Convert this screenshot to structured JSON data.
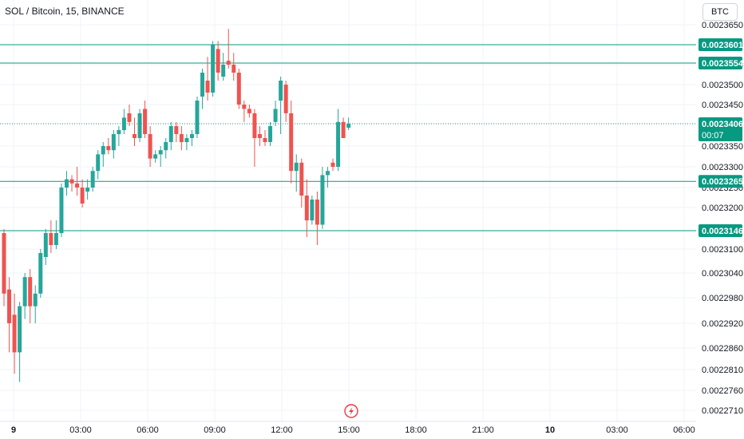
{
  "header": {
    "title": "SOL / Bitcoin, 15, BINANCE",
    "currency_button": "BTC"
  },
  "colors": {
    "up": "#26a69a",
    "down": "#ef5350",
    "level_line": "#089981",
    "label_bg": "#089981",
    "grid": "#f0f3fa",
    "axis_text": "#131722",
    "lightning": "#f23645"
  },
  "chart_data": {
    "type": "candlestick",
    "title": "SOL / Bitcoin, 15, BINANCE",
    "price_axis": {
      "ticks": [
        0.002365,
        0.002355,
        0.00235,
        0.002345,
        0.002335,
        0.00233,
        0.002325,
        0.00232,
        0.00231,
        0.002304,
        0.002298,
        0.002292,
        0.002286,
        0.002281,
        0.002276,
        0.002271
      ],
      "tick_labels": [
        "0.0023650",
        "0.0023550",
        "0.0023500",
        "0.0023450",
        "0.0023350",
        "0.0023300",
        "0.0023250",
        "0.0023200",
        "0.0023100",
        "0.0023040",
        "0.0022980",
        "0.0022920",
        "0.0022860",
        "0.0022810",
        "0.0022760",
        "0.0022710"
      ]
    },
    "time_axis": {
      "labels": [
        "9",
        "03:00",
        "06:00",
        "09:00",
        "12:00",
        "15:00",
        "18:00",
        "21:00",
        "10",
        "03:00",
        "06:00"
      ],
      "bold": [
        true,
        false,
        false,
        false,
        false,
        false,
        false,
        false,
        true,
        false,
        false
      ]
    },
    "levels": [
      {
        "price": 0.0023601,
        "label": "0.0023601"
      },
      {
        "price": 0.0023554,
        "label": "0.0023554"
      },
      {
        "price": 0.0023265,
        "label": "0.0023265"
      },
      {
        "price": 0.0023146,
        "label": "0.0023146"
      }
    ],
    "last_price": {
      "price": 0.0023406,
      "label": "0.0023406",
      "countdown": "00:07"
    },
    "candles": [
      {
        "o": 0.002314,
        "h": 0.002315,
        "l": 0.002296,
        "c": 0.002299
      },
      {
        "o": 0.0023,
        "h": 0.002303,
        "l": 0.002285,
        "c": 0.002292
      },
      {
        "o": 0.002294,
        "h": 0.002299,
        "l": 0.00228,
        "c": 0.002285
      },
      {
        "o": 0.002285,
        "h": 0.002297,
        "l": 0.002278,
        "c": 0.002296
      },
      {
        "o": 0.002296,
        "h": 0.002304,
        "l": 0.002293,
        "c": 0.002303
      },
      {
        "o": 0.002303,
        "h": 0.002305,
        "l": 0.002292,
        "c": 0.002296
      },
      {
        "o": 0.002296,
        "h": 0.002301,
        "l": 0.002292,
        "c": 0.002299
      },
      {
        "o": 0.002299,
        "h": 0.00231,
        "l": 0.002298,
        "c": 0.002309
      },
      {
        "o": 0.002308,
        "h": 0.002315,
        "l": 0.002306,
        "c": 0.002314
      },
      {
        "o": 0.002314,
        "h": 0.002317,
        "l": 0.002309,
        "c": 0.002311
      },
      {
        "o": 0.002311,
        "h": 0.002317,
        "l": 0.00231,
        "c": 0.002314
      },
      {
        "o": 0.002314,
        "h": 0.002326,
        "l": 0.002313,
        "c": 0.002325
      },
      {
        "o": 0.002325,
        "h": 0.002329,
        "l": 0.002323,
        "c": 0.002327
      },
      {
        "o": 0.002327,
        "h": 0.002328,
        "l": 0.002324,
        "c": 0.002326
      },
      {
        "o": 0.002326,
        "h": 0.00233,
        "l": 0.002323,
        "c": 0.002325
      },
      {
        "o": 0.002325,
        "h": 0.002327,
        "l": 0.00232,
        "c": 0.002321
      },
      {
        "o": 0.002324,
        "h": 0.002327,
        "l": 0.002322,
        "c": 0.002325
      },
      {
        "o": 0.002325,
        "h": 0.00233,
        "l": 0.002324,
        "c": 0.002329
      },
      {
        "o": 0.002329,
        "h": 0.002334,
        "l": 0.002327,
        "c": 0.002333
      },
      {
        "o": 0.002333,
        "h": 0.002336,
        "l": 0.00233,
        "c": 0.002335
      },
      {
        "o": 0.002335,
        "h": 0.002337,
        "l": 0.002333,
        "c": 0.002334
      },
      {
        "o": 0.002334,
        "h": 0.002339,
        "l": 0.002332,
        "c": 0.002338
      },
      {
        "o": 0.002338,
        "h": 0.00234,
        "l": 0.002335,
        "c": 0.002339
      },
      {
        "o": 0.002339,
        "h": 0.002344,
        "l": 0.002338,
        "c": 0.002342
      },
      {
        "o": 0.002343,
        "h": 0.002345,
        "l": 0.00234,
        "c": 0.002341
      },
      {
        "o": 0.002338,
        "h": 0.002342,
        "l": 0.002335,
        "c": 0.002337
      },
      {
        "o": 0.002337,
        "h": 0.002344,
        "l": 0.002336,
        "c": 0.002343
      },
      {
        "o": 0.002344,
        "h": 0.002346,
        "l": 0.002337,
        "c": 0.002338
      },
      {
        "o": 0.002338,
        "h": 0.00234,
        "l": 0.00233,
        "c": 0.002332
      },
      {
        "o": 0.002332,
        "h": 0.002334,
        "l": 0.002331,
        "c": 0.002333
      },
      {
        "o": 0.002333,
        "h": 0.002335,
        "l": 0.00233,
        "c": 0.002334
      },
      {
        "o": 0.002334,
        "h": 0.002337,
        "l": 0.002332,
        "c": 0.002336
      },
      {
        "o": 0.002336,
        "h": 0.002341,
        "l": 0.002334,
        "c": 0.00234
      },
      {
        "o": 0.00234,
        "h": 0.002341,
        "l": 0.002336,
        "c": 0.002338
      },
      {
        "o": 0.002338,
        "h": 0.00234,
        "l": 0.002334,
        "c": 0.002336
      },
      {
        "o": 0.002336,
        "h": 0.002338,
        "l": 0.002334,
        "c": 0.002337
      },
      {
        "o": 0.002337,
        "h": 0.002339,
        "l": 0.002335,
        "c": 0.002338
      },
      {
        "o": 0.002338,
        "h": 0.002347,
        "l": 0.002337,
        "c": 0.002346
      },
      {
        "o": 0.002347,
        "h": 0.002354,
        "l": 0.002344,
        "c": 0.002353
      },
      {
        "o": 0.002351,
        "h": 0.002357,
        "l": 0.002346,
        "c": 0.002348
      },
      {
        "o": 0.002348,
        "h": 0.002361,
        "l": 0.002347,
        "c": 0.00236
      },
      {
        "o": 0.002359,
        "h": 0.002361,
        "l": 0.002351,
        "c": 0.002353
      },
      {
        "o": 0.002352,
        "h": 0.002358,
        "l": 0.002351,
        "c": 0.002355
      },
      {
        "o": 0.002356,
        "h": 0.002364,
        "l": 0.002354,
        "c": 0.002355
      },
      {
        "o": 0.002355,
        "h": 0.002358,
        "l": 0.002351,
        "c": 0.002353
      },
      {
        "o": 0.002353,
        "h": 0.002354,
        "l": 0.002344,
        "c": 0.002345
      },
      {
        "o": 0.002345,
        "h": 0.002346,
        "l": 0.002341,
        "c": 0.002344
      },
      {
        "o": 0.002344,
        "h": 0.002345,
        "l": 0.002342,
        "c": 0.002343
      },
      {
        "o": 0.002343,
        "h": 0.002344,
        "l": 0.00233,
        "c": 0.002337
      },
      {
        "o": 0.002338,
        "h": 0.00234,
        "l": 0.002335,
        "c": 0.002337
      },
      {
        "o": 0.002337,
        "h": 0.002339,
        "l": 0.002335,
        "c": 0.002336
      },
      {
        "o": 0.002336,
        "h": 0.002341,
        "l": 0.002335,
        "c": 0.00234
      },
      {
        "o": 0.002341,
        "h": 0.002346,
        "l": 0.00234,
        "c": 0.002344
      },
      {
        "o": 0.002346,
        "h": 0.002352,
        "l": 0.002338,
        "c": 0.002351
      },
      {
        "o": 0.00235,
        "h": 0.002351,
        "l": 0.002341,
        "c": 0.002343
      },
      {
        "o": 0.002343,
        "h": 0.002346,
        "l": 0.002326,
        "c": 0.002329
      },
      {
        "o": 0.002329,
        "h": 0.002333,
        "l": 0.002324,
        "c": 0.002331
      },
      {
        "o": 0.002331,
        "h": 0.002332,
        "l": 0.00232,
        "c": 0.002323
      },
      {
        "o": 0.002323,
        "h": 0.002327,
        "l": 0.002313,
        "c": 0.002317
      },
      {
        "o": 0.002317,
        "h": 0.002323,
        "l": 0.002316,
        "c": 0.002322
      },
      {
        "o": 0.002322,
        "h": 0.002324,
        "l": 0.002311,
        "c": 0.002316
      },
      {
        "o": 0.002316,
        "h": 0.00233,
        "l": 0.002315,
        "c": 0.002328
      },
      {
        "o": 0.002328,
        "h": 0.00233,
        "l": 0.002325,
        "c": 0.002329
      },
      {
        "o": 0.002331,
        "h": 0.002332,
        "l": 0.002329,
        "c": 0.00233
      },
      {
        "o": 0.00233,
        "h": 0.002344,
        "l": 0.002329,
        "c": 0.002341
      },
      {
        "o": 0.002341,
        "h": 0.002342,
        "l": 0.002337,
        "c": 0.002337
      },
      {
        "o": 0.0023396,
        "h": 0.002342,
        "l": 0.002339,
        "c": 0.0023406
      }
    ]
  }
}
